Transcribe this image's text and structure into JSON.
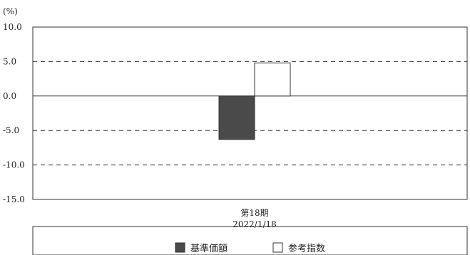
{
  "chart_data": {
    "type": "bar",
    "unit_label": "(%)",
    "categories": [
      "第18期"
    ],
    "category_sublabels": [
      "2022/1/18"
    ],
    "series": [
      {
        "name": "基準価額",
        "values": [
          -6.3
        ],
        "color": "#4a4a4a"
      },
      {
        "name": "参考指数",
        "values": [
          4.8
        ],
        "color": "#ffffff"
      }
    ],
    "ylim": [
      -15.0,
      10.0
    ],
    "yticks": [
      10.0,
      5.0,
      0.0,
      -5.0,
      -10.0,
      -15.0
    ],
    "ytick_labels": [
      "10.0",
      "5.0",
      "0.0",
      "-5.0",
      "-10.0",
      "-15.0"
    ],
    "grid": "dashed at 5.0, -5.0, -10.0",
    "legend_position": "bottom"
  }
}
